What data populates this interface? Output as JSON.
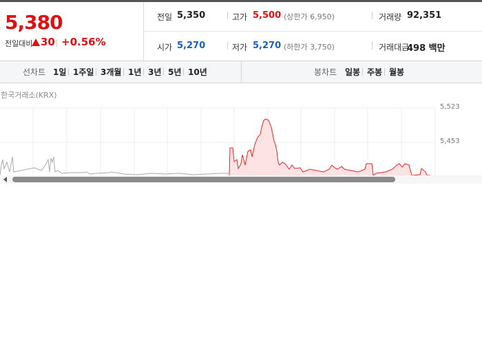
{
  "quote": {
    "price": "5,380",
    "change_label": "전일대비",
    "change": "30",
    "change_rate": "+0.56%"
  },
  "summary": {
    "rows": [
      [
        {
          "label": "전일",
          "value": "5,350"
        },
        {
          "label": "고가",
          "value": "5,500",
          "note": "(상한가 6,950)"
        },
        {
          "label": "거래량",
          "value": "92,351"
        }
      ],
      [
        {
          "label": "시가",
          "value": "5,270"
        },
        {
          "label": "저가",
          "value": "5,270",
          "note": "(하한가 3,750)"
        },
        {
          "label": "거래대금",
          "value": "498 백만"
        }
      ]
    ]
  },
  "tabs": {
    "line_label": "선차트",
    "line": [
      "1일",
      "1주일",
      "3개월",
      "1년",
      "3년",
      "5년",
      "10년"
    ],
    "candle_label": "봉차트",
    "candle": [
      "일봉",
      "주봉",
      "월봉"
    ]
  },
  "chart": {
    "source": "한국거래소(KRX)",
    "y_labels": [
      "5,523",
      "5,453"
    ]
  }
}
